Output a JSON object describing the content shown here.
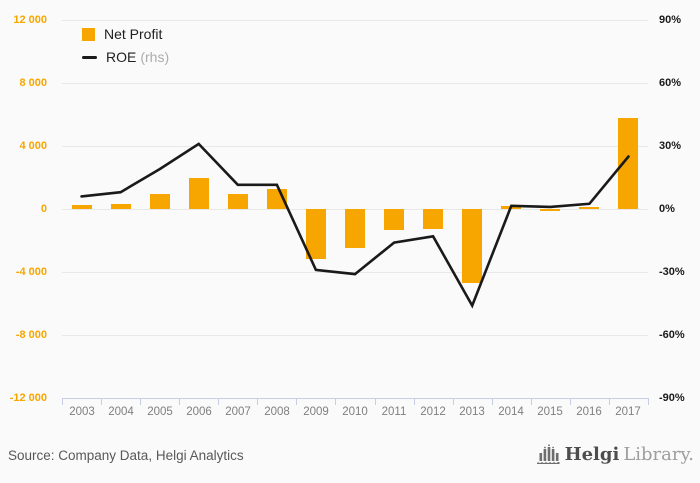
{
  "chart_data": {
    "type": "bar",
    "title": "",
    "categories": [
      "2003",
      "2004",
      "2005",
      "2006",
      "2007",
      "2008",
      "2009",
      "2010",
      "2011",
      "2012",
      "2013",
      "2014",
      "2015",
      "2016",
      "2017"
    ],
    "series": [
      {
        "name": "Net Profit",
        "type": "bar",
        "axis": "left",
        "values": [
          250,
          300,
          950,
          2000,
          950,
          1300,
          -3200,
          -2500,
          -1350,
          -1250,
          -4700,
          200,
          -100,
          150,
          5800
        ]
      },
      {
        "name": "ROE",
        "type": "line",
        "axis": "right",
        "values": [
          6,
          8,
          19,
          31,
          11.5,
          11.5,
          -29,
          -31,
          -16,
          -13,
          -46,
          1.5,
          1,
          2.5,
          25
        ]
      }
    ],
    "left_axis": {
      "min": -12000,
      "max": 12000,
      "step": 4000,
      "tick_labels": [
        "12 000",
        "8 000",
        "4 000",
        "0",
        "-4 000",
        "-8 000",
        "-12 000"
      ]
    },
    "right_axis": {
      "min": -90,
      "max": 90,
      "step": 30,
      "tick_labels": [
        "90%",
        "60%",
        "30%",
        "0%",
        "-30%",
        "-60%",
        "-90%"
      ]
    },
    "grid": true,
    "legend_position": "top-left"
  },
  "legend": {
    "net_profit_label": "Net Profit",
    "roe_label": "ROE",
    "roe_suffix": "(rhs)"
  },
  "footer": {
    "source_text": "Source: Company Data, Helgi Analytics",
    "logo_bold": "Helgi",
    "logo_light": "Library."
  },
  "colors": {
    "bar": "#F7A600",
    "line": "#1A1A1A",
    "left_axis_text": "#F7A600",
    "right_axis_text": "#1A1A1A",
    "x_axis_text": "#7F7F7F",
    "gridline": "#E8E8E8",
    "axis_line": "#C8CEE4",
    "background": "#FAFAFA"
  }
}
